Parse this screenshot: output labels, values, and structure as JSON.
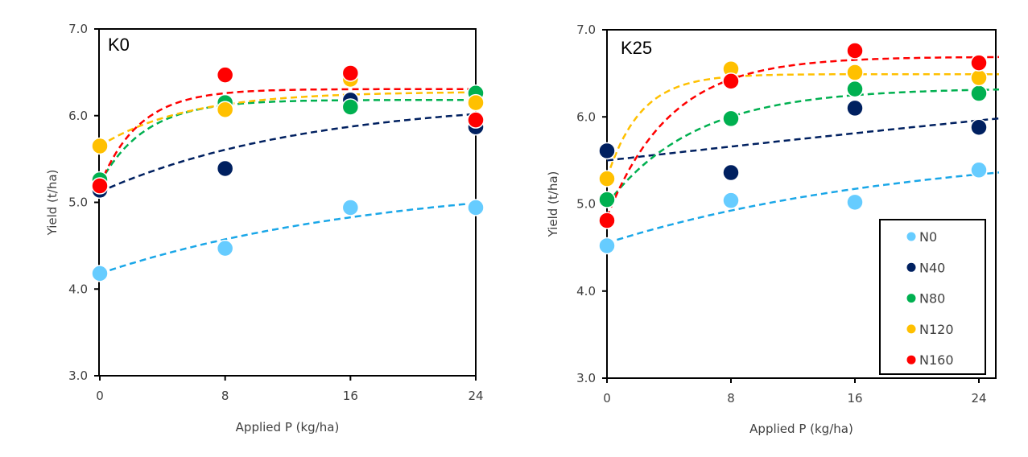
{
  "chart_data": [
    {
      "type": "scatter",
      "panel": "K0",
      "title": "K0",
      "xlabel": "Applied P (kg/ha)",
      "ylabel": "Yield (t/ha)",
      "xlim": [
        0,
        24
      ],
      "ylim": [
        3.0,
        7.0
      ],
      "xticks": [
        "0",
        "8",
        "16",
        "24"
      ],
      "yticks": [
        "3.0",
        "4.0",
        "5.0",
        "6.0",
        "7.0"
      ],
      "grid": false,
      "legend": null,
      "x": [
        0,
        8,
        16,
        24
      ],
      "series": [
        {
          "name": "N0",
          "color": "#66CCFF",
          "line_color": "#1AA7E8",
          "values": [
            4.18,
            4.47,
            4.94,
            4.94
          ],
          "trend": [
            4.18,
            4.57,
            4.83,
            4.99
          ]
        },
        {
          "name": "N40",
          "color": "#002060",
          "line_color": "#002060",
          "values": [
            5.14,
            5.39,
            6.18,
            5.87
          ],
          "trend": [
            5.12,
            5.61,
            5.87,
            6.02
          ]
        },
        {
          "name": "N80",
          "color": "#00B050",
          "line_color": "#00B050",
          "values": [
            5.26,
            6.15,
            6.1,
            6.26
          ],
          "trend": [
            5.22,
            6.12,
            6.18,
            6.18
          ]
        },
        {
          "name": "N120",
          "color": "#FFC000",
          "line_color": "#FFC000",
          "values": [
            5.65,
            6.07,
            6.42,
            6.15
          ],
          "trend": [
            5.65,
            6.13,
            6.24,
            6.27
          ]
        },
        {
          "name": "N160",
          "color": "#FF0000",
          "line_color": "#FF0000",
          "values": [
            5.19,
            6.47,
            6.49,
            5.95
          ],
          "trend": [
            5.2,
            6.26,
            6.3,
            6.31
          ]
        }
      ]
    },
    {
      "type": "scatter",
      "panel": "K25",
      "title": "K25",
      "xlabel": "Applied P (kg/ha)",
      "ylabel": "Yield (t/ha)",
      "xlim": [
        0,
        25.3
      ],
      "ylim": [
        3.0,
        7.0
      ],
      "xticks": [
        "0",
        "8",
        "16",
        "24"
      ],
      "yticks": [
        "3.0",
        "4.0",
        "5.0",
        "6.0",
        "7.0"
      ],
      "grid": false,
      "legend": "bottom-right",
      "x": [
        0,
        8,
        16,
        24
      ],
      "series": [
        {
          "name": "N0",
          "color": "#66CCFF",
          "line_color": "#1AA7E8",
          "values": [
            4.52,
            5.04,
            5.02,
            5.39
          ],
          "trend": [
            4.55,
            4.93,
            5.17,
            5.34
          ]
        },
        {
          "name": "N40",
          "color": "#002060",
          "line_color": "#002060",
          "values": [
            5.61,
            5.36,
            6.1,
            5.88
          ],
          "trend": [
            5.5,
            5.66,
            5.81,
            5.96
          ]
        },
        {
          "name": "N80",
          "color": "#00B050",
          "line_color": "#00B050",
          "values": [
            5.05,
            5.98,
            6.32,
            6.27
          ],
          "trend": [
            5.0,
            6.0,
            6.25,
            6.31
          ]
        },
        {
          "name": "N120",
          "color": "#FFC000",
          "line_color": "#FFC000",
          "values": [
            5.29,
            6.55,
            6.51,
            6.45
          ],
          "trend": [
            5.3,
            6.46,
            6.49,
            6.49
          ]
        },
        {
          "name": "N160",
          "color": "#FF0000",
          "line_color": "#FF0000",
          "values": [
            4.81,
            6.41,
            6.76,
            6.62
          ],
          "trend": [
            4.85,
            6.43,
            6.65,
            6.69
          ]
        }
      ]
    }
  ],
  "legend": {
    "items": [
      {
        "label": "N0",
        "color": "#66CCFF"
      },
      {
        "label": "N40",
        "color": "#002060"
      },
      {
        "label": "N80",
        "color": "#00B050"
      },
      {
        "label": "N120",
        "color": "#FFC000"
      },
      {
        "label": "N160",
        "color": "#FF0000"
      }
    ]
  }
}
